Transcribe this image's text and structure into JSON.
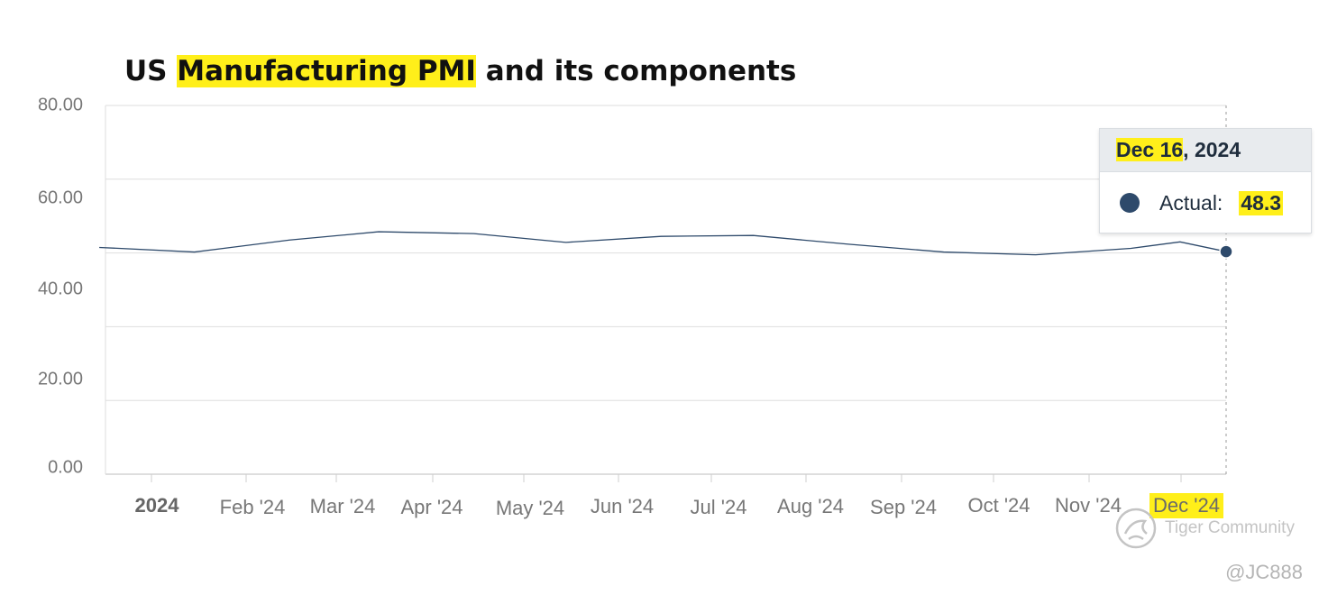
{
  "title": {
    "prefix": "US ",
    "highlight": "Manufacturing PMI",
    "suffix": " and its components"
  },
  "tooltip": {
    "date_highlight": "Dec 16",
    "date_rest": ", 2024",
    "series_label": "Actual:",
    "value": "48.3"
  },
  "watermark": {
    "brand": "Tiger Community",
    "handle": "@JC888"
  },
  "colors": {
    "line": "#2e4a6b",
    "highlight": "#ffef1a",
    "grid": "#dedede",
    "axis_text": "#777777"
  },
  "chart_data": {
    "type": "line",
    "title": "US Manufacturing PMI and its components",
    "ylim": [
      0,
      80
    ],
    "y_ticks": [
      "80.00",
      "60.00",
      "40.00",
      "20.00",
      "0.00"
    ],
    "x_tick_labels": [
      "2024",
      "Feb '24",
      "Mar '24",
      "Apr '24",
      "May '24",
      "Jun '24",
      "Jul '24",
      "Aug '24",
      "Sep '24",
      "Oct '24",
      "Nov '24",
      "Dec '24"
    ],
    "highlighted_tick": "Dec '24",
    "bold_tick": "2024",
    "grid": true,
    "series": [
      {
        "name": "Actual",
        "x": [
          "2023-12-15",
          "2024-01-15",
          "2024-02-15",
          "2024-03-15",
          "2024-04-15",
          "2024-05-15",
          "2024-06-15",
          "2024-07-15",
          "2024-08-15",
          "2024-09-15",
          "2024-10-15",
          "2024-11-15",
          "2024-12-01",
          "2024-12-16"
        ],
        "values": [
          49.2,
          48.2,
          50.8,
          52.6,
          52.2,
          50.3,
          51.6,
          51.8,
          49.9,
          48.2,
          47.6,
          49.0,
          50.4,
          48.3
        ]
      }
    ]
  }
}
